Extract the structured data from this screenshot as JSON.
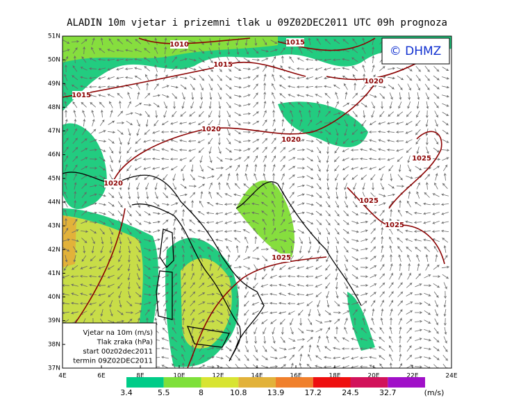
{
  "title": "ALADIN  10m  vjetar  i  prizemni  tlak  u  09Z02DEC2011  UTC  09h  prognoza",
  "copyright": "© DHMZ",
  "lat_labels": [
    "37N",
    "38N",
    "39N",
    "40N",
    "41N",
    "42N",
    "43N",
    "44N",
    "45N",
    "46N",
    "47N",
    "48N",
    "49N",
    "50N",
    "51N"
  ],
  "lon_labels": [
    "4E",
    "6E",
    "8E",
    "10E",
    "12E",
    "14E",
    "16E",
    "18E",
    "20E",
    "22E",
    "24E"
  ],
  "isobar_labels": [
    1010,
    1015,
    1015,
    1020,
    1015,
    1020,
    1020,
    1025,
    1020,
    1025,
    1025,
    1025
  ],
  "legend": [
    "Vjetar na 10m (m/s)",
    "Tlak zraka (hPa)",
    "start 00z02dec2011",
    "termin 09Z02DEC2011"
  ],
  "colorbar": {
    "levels": [
      3.4,
      5.5,
      8,
      10.8,
      13.9,
      17.2,
      24.5,
      32.7
    ],
    "colors": [
      "#00cc88",
      "#7ee03a",
      "#d8e432",
      "#e2b23a",
      "#f0802c",
      "#ee0f0f",
      "#d2125a",
      "#a010c8"
    ],
    "unit": "(m/s)"
  }
}
